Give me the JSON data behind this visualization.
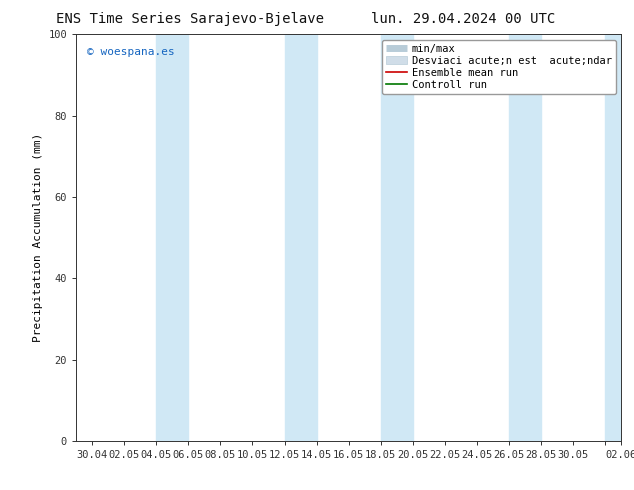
{
  "title_left": "ENS Time Series Sarajevo-Bjelave",
  "title_right": "lun. 29.04.2024 00 UTC",
  "ylabel": "Precipitation Accumulation (mm)",
  "ylim": [
    0,
    100
  ],
  "yticks": [
    0,
    20,
    40,
    60,
    80,
    100
  ],
  "xtick_labels": [
    "30.04",
    "02.05",
    "04.05",
    "06.05",
    "08.05",
    "10.05",
    "12.05",
    "14.05",
    "16.05",
    "18.05",
    "20.05",
    "22.05",
    "24.05",
    "26.05",
    "28.05",
    "30.05",
    "",
    "02.06"
  ],
  "band_color": "#d0e8f5",
  "bg_color": "#ffffff",
  "plot_bg_color": "#ffffff",
  "legend_minmax_color": "#b8ccd8",
  "legend_std_color": "#d0dde8",
  "legend_ensemble_color": "#cc0000",
  "legend_control_color": "#007700",
  "watermark": "© woespana.es",
  "watermark_color": "#1565c0",
  "title_fontsize": 10,
  "label_fontsize": 8,
  "tick_fontsize": 7.5,
  "legend_fontsize": 7.5
}
